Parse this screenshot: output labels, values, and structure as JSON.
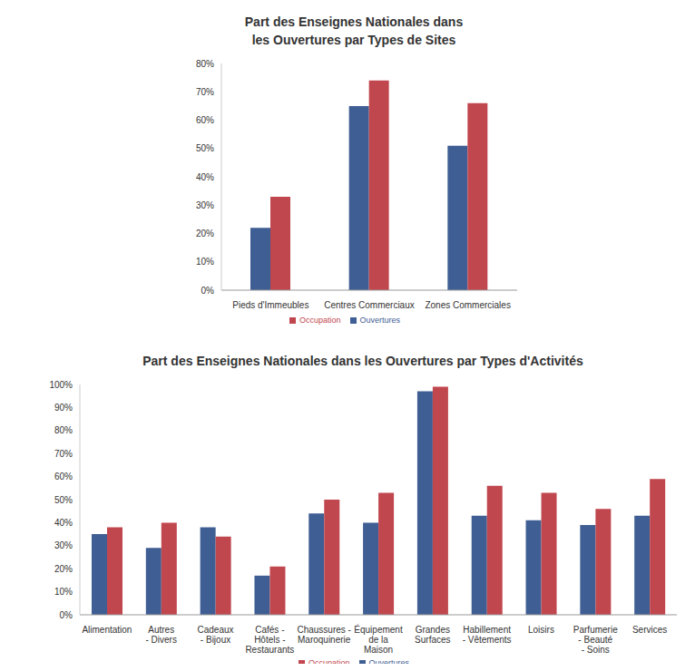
{
  "chart_data": [
    {
      "type": "bar",
      "title": "Part des Enseignes Nationales dans\nles Ouvertures par Types de Sites",
      "categories": [
        "Pieds d'Immeubles",
        "Centres Commerciaux",
        "Zones Commerciales"
      ],
      "series": [
        {
          "name": "Ouvertures",
          "color": "#3f5e93",
          "values": [
            22,
            65,
            51
          ]
        },
        {
          "name": "Occupation",
          "color": "#c1474f",
          "values": [
            33,
            74,
            66
          ]
        }
      ],
      "ylim": [
        0,
        80
      ],
      "yticks": [
        {
          "value": 0,
          "label": "0%"
        },
        {
          "value": 10,
          "label": "10%"
        },
        {
          "value": 20,
          "label": "20%"
        },
        {
          "value": 30,
          "label": "30%"
        },
        {
          "value": 40,
          "label": "40%"
        },
        {
          "value": 50,
          "label": "50%"
        },
        {
          "value": 60,
          "label": "60%"
        },
        {
          "value": 70,
          "label": "70%"
        },
        {
          "value": 80,
          "label": "80%"
        }
      ],
      "grid": true,
      "legend": "bottom"
    },
    {
      "type": "bar",
      "title": "Part des Enseignes Nationales dans les Ouvertures par Types d'Activités",
      "categories": [
        "Alimentation",
        "Autres\n- Divers",
        "Cadeaux\n- Bijoux",
        "Cafés -\nHôtels -\nRestaurants",
        "Chaussures -\nMaroquinerie",
        "Équipement\nde la\nMaison",
        "Grandes\nSurfaces",
        "Habillement\n- Vêtements",
        "Loisirs",
        "Parfumerie\n- Beauté\n- Soins",
        "Services"
      ],
      "series": [
        {
          "name": "Ouvertures",
          "color": "#3f5e93",
          "values": [
            35,
            29,
            38,
            17,
            44,
            40,
            97,
            43,
            41,
            39,
            43
          ]
        },
        {
          "name": "Occupation",
          "color": "#c1474f",
          "values": [
            38,
            40,
            34,
            21,
            50,
            53,
            99,
            56,
            53,
            46,
            59
          ]
        }
      ],
      "ylim": [
        0,
        100
      ],
      "yticks": [
        {
          "value": 0,
          "label": "0%"
        },
        {
          "value": 10,
          "label": "10%"
        },
        {
          "value": 20,
          "label": "20%"
        },
        {
          "value": 30,
          "label": "30%"
        },
        {
          "value": 40,
          "label": "40%"
        },
        {
          "value": 50,
          "label": "50%"
        },
        {
          "value": 60,
          "label": "60%"
        },
        {
          "value": 70,
          "label": "70%"
        },
        {
          "value": 80,
          "label": "80%"
        },
        {
          "value": 90,
          "label": "90%"
        },
        {
          "value": 100,
          "label": "100%"
        }
      ],
      "grid": true,
      "legend": "bottom"
    }
  ]
}
